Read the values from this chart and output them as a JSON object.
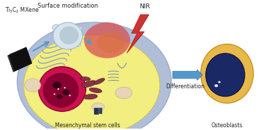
{
  "bg_color": "#ffffff",
  "labels": {
    "ti3c2": "Ti₃C₂ MXene",
    "surface_mod": "Surface modification",
    "nir": "NIR",
    "stem_cells": "Mesenchymal stem cells",
    "differentiation": "Differentiation",
    "osteoblasts": "Osteoblasts"
  },
  "colors": {
    "cell_outer_mem": "#9aabcc",
    "cell_outer_fill": "#b0bed8",
    "cell_inner_fill": "#f2ee80",
    "cell_inner_border": "#d4b800",
    "nucleus_fill": "#cc1050",
    "nucleus_dark": "#8a0030",
    "nucleus_spot": "#330018",
    "mito_fill": "#883344",
    "mito_edge": "#551122",
    "er_color": "#8a9ec0",
    "vacuole_fill": "#e8d5b8",
    "vacuole_edge": "#c8b898",
    "heat_red": "#d85050",
    "heat_orange": "#d87040",
    "arrow_blue": "#5599cc",
    "osteo_outer": "#e8b848",
    "osteo_outer_edge": "#c89020",
    "osteo_nuc": "#1a2866",
    "osteo_nuc_edge": "#0a1040",
    "lightning": "#cc3333",
    "mxene_black": "#151515",
    "mxene_dark": "#2a2a2a",
    "surface_mod_fill": "#d8e4ee",
    "surface_mod_edge": "#a0b8cc",
    "surface_mod_inner": "#b8ccd8",
    "small_organelle": "#c8bcc8",
    "golgi_color": "#7a8aaa",
    "dark_blue_obj": "#223355",
    "filament_color": "#5577aa"
  },
  "figsize": [
    3.78,
    1.87
  ],
  "dpi": 100
}
